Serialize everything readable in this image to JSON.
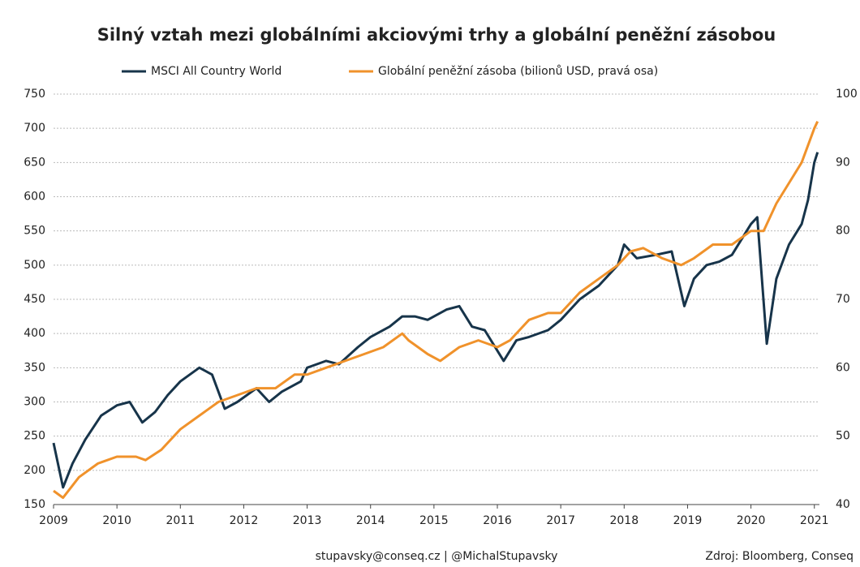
{
  "chart_data": {
    "type": "line",
    "title": "Silný vztah mezi globálními akciovými trhy a globální peněžní zásobou",
    "footer_contact": "stupavsky@conseq.cz  |  @MichalStupavsky",
    "footer_source": "Zdroj: Bloomberg, Conseq",
    "xlim": [
      2009,
      2021.08
    ],
    "xticks": [
      2009,
      2010,
      2011,
      2012,
      2013,
      2014,
      2015,
      2016,
      2017,
      2018,
      2019,
      2020,
      2021
    ],
    "ylim": [
      150,
      750
    ],
    "yticks": [
      150,
      200,
      250,
      300,
      350,
      400,
      450,
      500,
      550,
      600,
      650,
      700,
      750
    ],
    "y2lim": [
      40,
      100
    ],
    "y2ticks": [
      40,
      50,
      60,
      70,
      80,
      90,
      100
    ],
    "grid": true,
    "legend": "top",
    "series": [
      {
        "name": "MSCI All Country World",
        "color": "#17344a",
        "x": [
          2009.0,
          2009.15,
          2009.3,
          2009.5,
          2009.75,
          2010.0,
          2010.2,
          2010.4,
          2010.6,
          2010.8,
          2011.0,
          2011.3,
          2011.5,
          2011.7,
          2011.9,
          2012.2,
          2012.4,
          2012.6,
          2012.9,
          2013.0,
          2013.3,
          2013.5,
          2013.8,
          2014.0,
          2014.3,
          2014.5,
          2014.7,
          2014.9,
          2015.2,
          2015.4,
          2015.6,
          2015.8,
          2016.1,
          2016.3,
          2016.5,
          2016.8,
          2017.0,
          2017.3,
          2017.6,
          2017.9,
          2018.0,
          2018.2,
          2018.5,
          2018.75,
          2018.95,
          2019.1,
          2019.3,
          2019.5,
          2019.7,
          2020.0,
          2020.1,
          2020.25,
          2020.4,
          2020.6,
          2020.8,
          2020.9,
          2021.0,
          2021.05
        ],
        "values": [
          240,
          175,
          210,
          245,
          280,
          295,
          300,
          270,
          285,
          310,
          330,
          350,
          340,
          290,
          300,
          320,
          300,
          315,
          330,
          350,
          360,
          355,
          380,
          395,
          410,
          425,
          425,
          420,
          435,
          440,
          410,
          405,
          360,
          390,
          395,
          405,
          420,
          450,
          470,
          500,
          530,
          510,
          515,
          520,
          440,
          480,
          500,
          505,
          515,
          560,
          570,
          385,
          480,
          530,
          560,
          595,
          650,
          665
        ]
      },
      {
        "name": "Globální peněžní zásoba (bilionů USD, pravá osa)",
        "color": "#f0922b",
        "axis": "y2",
        "x": [
          2009.0,
          2009.15,
          2009.4,
          2009.7,
          2010.0,
          2010.3,
          2010.45,
          2010.7,
          2011.0,
          2011.3,
          2011.6,
          2011.9,
          2012.2,
          2012.5,
          2012.8,
          2013.0,
          2013.3,
          2013.6,
          2013.9,
          2014.2,
          2014.5,
          2014.6,
          2014.9,
          2015.1,
          2015.4,
          2015.7,
          2016.0,
          2016.2,
          2016.5,
          2016.8,
          2017.0,
          2017.3,
          2017.6,
          2017.9,
          2018.1,
          2018.3,
          2018.6,
          2018.9,
          2019.1,
          2019.4,
          2019.7,
          2020.0,
          2020.2,
          2020.4,
          2020.6,
          2020.8,
          2021.0,
          2021.05
        ],
        "values": [
          42,
          41,
          44,
          46,
          47,
          47,
          46.5,
          48,
          51,
          53,
          55,
          56,
          57,
          57,
          59,
          59,
          60,
          61,
          62,
          63,
          65,
          64,
          62,
          61,
          63,
          64,
          63,
          64,
          67,
          68,
          68,
          71,
          73,
          75,
          77,
          77.5,
          76,
          75,
          76,
          78,
          78,
          80,
          80,
          84,
          87,
          90,
          95,
          96
        ]
      }
    ]
  }
}
